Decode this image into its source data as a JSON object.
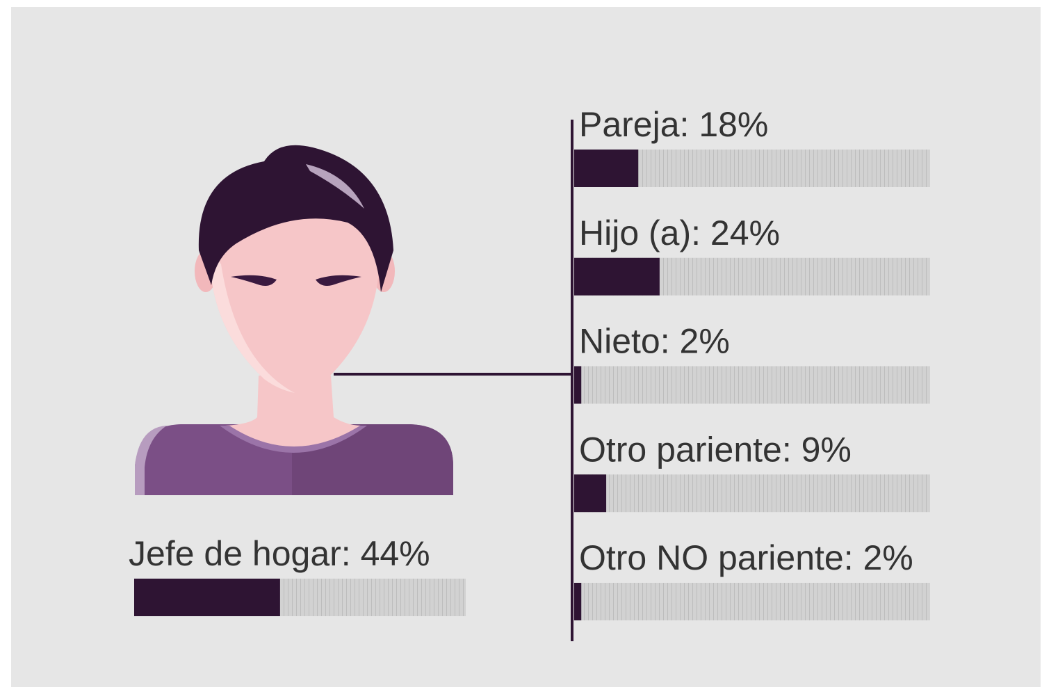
{
  "scale": [
    0,
    100
  ],
  "head": {
    "label": "Jefe de hogar: 44%",
    "value": 44
  },
  "members": [
    {
      "label": "Pareja: 18%",
      "value": 18
    },
    {
      "label": "Hijo (a): 24%",
      "value": 24
    },
    {
      "label": "Nieto: 2%",
      "value": 2
    },
    {
      "label": "Otro pariente: 9%",
      "value": 9
    },
    {
      "label": "Otro NO pariente: 2%",
      "value": 2
    }
  ]
}
